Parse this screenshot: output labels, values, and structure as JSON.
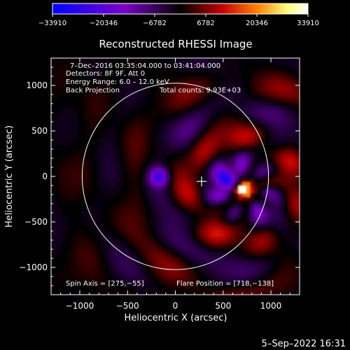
{
  "chart_data": {
    "type": "heatmap",
    "title": "Reconstructed RHESSI Image",
    "xlabel": "Heliocentric X (arcsec)",
    "ylabel": "Heliocentric Y (arcsec)",
    "xlim": [
      -1300,
      1300
    ],
    "ylim": [
      -1300,
      1300
    ],
    "x_ticks": [
      -1000,
      -500,
      0,
      500,
      1000
    ],
    "y_ticks": [
      1000,
      500,
      0,
      -500,
      -1000
    ],
    "x_tick_labels": [
      "−1000",
      "−500",
      "0",
      "500",
      "1000"
    ],
    "y_tick_labels": [
      "1000",
      "500",
      "0",
      "−500",
      "−1000"
    ],
    "colorbar": {
      "ticks": [
        -33910,
        -20346,
        -6782,
        6782,
        20346,
        33910
      ],
      "tick_labels": [
        "−33910",
        "−20346",
        "−6782",
        "6782",
        "20346",
        "33910"
      ],
      "colormap": [
        "#0000ff",
        "#7a00c8",
        "#000000",
        "#c00000",
        "#ff8000",
        "#ffff80",
        "#ffffff"
      ]
    },
    "annotations": {
      "time_range": "7–Dec–2016 03:35:04.000 to 03:41:04.000",
      "detectors": "Detectors: 8F 9F, Att 0",
      "energy": "Energy Range: 6.0 – 12.0 keV",
      "method": "Back Projection",
      "total_counts": "Total counts: 9.93E+03",
      "spin_axis": "Spin Axis = [275,−55]",
      "flare_position": "Flare Position = [718,−138]"
    },
    "solar_disk_radius": 975,
    "disk_center": [
      0,
      0
    ],
    "flare_marker": [
      275,
      -55
    ],
    "sources": [
      {
        "x": 718,
        "y": -138,
        "value": 33910
      },
      {
        "x": -170,
        "y": 0,
        "value": -22000
      },
      {
        "x": 540,
        "y": -50,
        "value": -15000
      }
    ]
  },
  "footer": {
    "timestamp": "5–Sep–2022 16:31"
  }
}
